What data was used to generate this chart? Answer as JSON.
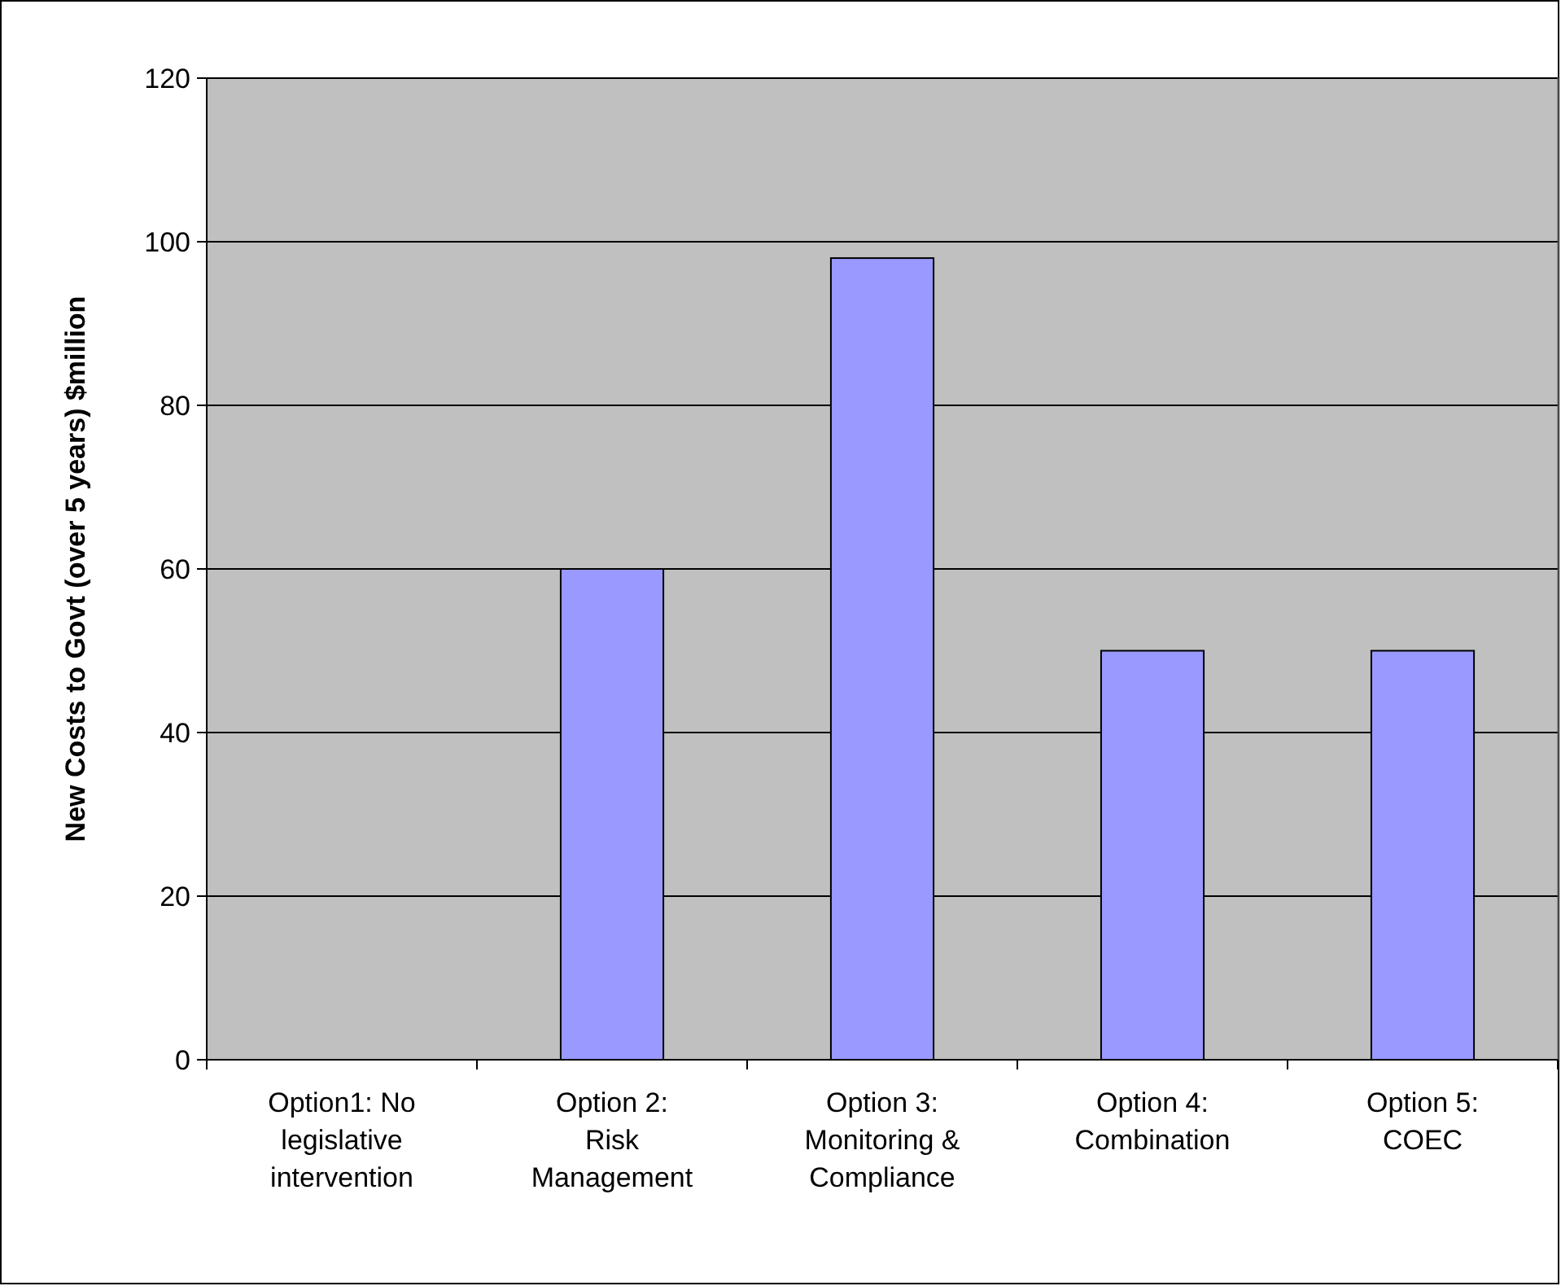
{
  "chart_data": {
    "type": "bar",
    "ylabel": "New Costs to Govt (over 5 years) $million",
    "categories": [
      "Option1: No legislative intervention",
      "Option 2: Risk Management",
      "Option 3: Monitoring & Compliance",
      "Option 4: Combination",
      "Option 5: COEC"
    ],
    "values": [
      0,
      60,
      98,
      50,
      50
    ],
    "color": "#9999ff",
    "ylim": [
      0,
      120
    ],
    "yticks": [
      0,
      20,
      40,
      60,
      80,
      100,
      120
    ],
    "grid": "y"
  }
}
